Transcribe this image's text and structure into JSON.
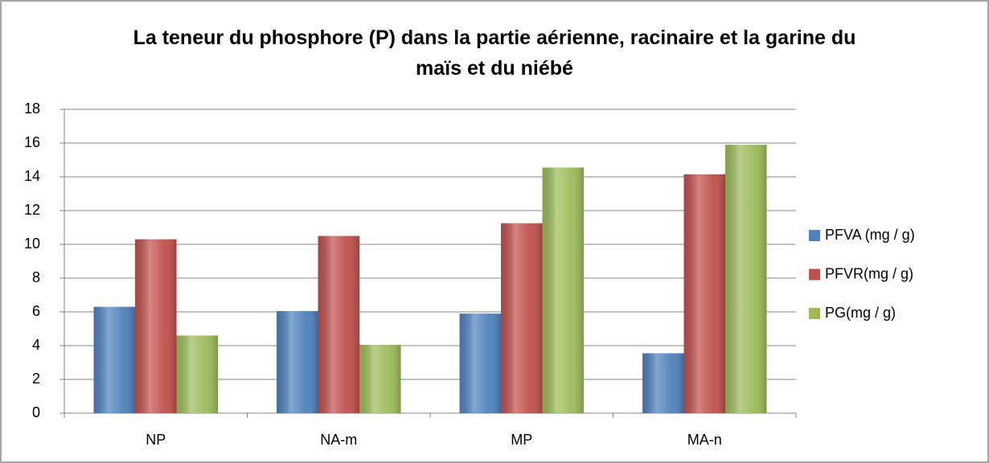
{
  "chart_data": {
    "type": "bar",
    "title": "La teneur du phosphore (P) dans la partie aérienne, racinaire et la garine du maïs et du niébé",
    "categories": [
      "NP",
      "NA-m",
      "MP",
      "MA-n"
    ],
    "series": [
      {
        "name": "PFVA (mg / g)",
        "color": "#4f81bd",
        "values": [
          6.3,
          6.05,
          5.9,
          3.55
        ]
      },
      {
        "name": "PFVR(mg / g)",
        "color": "#c0504d",
        "values": [
          10.3,
          10.5,
          11.25,
          14.15
        ]
      },
      {
        "name": "PG(mg / g)",
        "color": "#9bbb59",
        "values": [
          4.6,
          4.05,
          14.55,
          15.9
        ]
      }
    ],
    "ylim": [
      0,
      18
    ],
    "yticks": [
      0,
      2,
      4,
      6,
      8,
      10,
      12,
      14,
      16,
      18
    ],
    "grid": true,
    "legend": "right"
  }
}
